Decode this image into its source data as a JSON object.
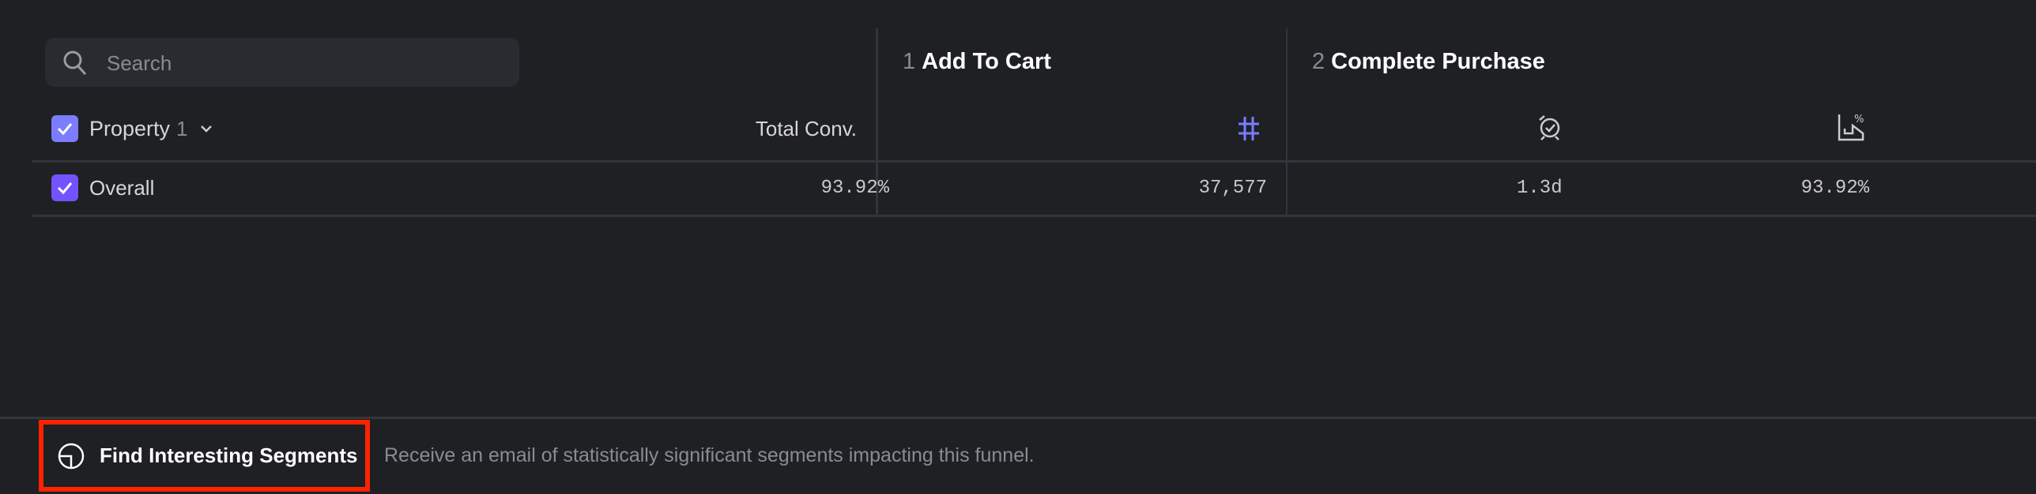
{
  "search": {
    "placeholder": "Search",
    "icon": "search-icon"
  },
  "table": {
    "property_header": {
      "label": "Property",
      "count": "1",
      "checked": true
    },
    "total_conv_header": "Total Conv.",
    "steps": [
      {
        "number": "1",
        "name": "Add To Cart",
        "metric_icons": [
          "hash-icon"
        ]
      },
      {
        "number": "2",
        "name": "Complete Purchase",
        "metric_icons": [
          "clock-check-icon",
          "conversion-chart-icon"
        ]
      }
    ],
    "rows": [
      {
        "label": "Overall",
        "checked": true,
        "total_conv": "93.92%",
        "step1_count": "37,577",
        "step2_time": "1.3d",
        "step2_conv": "93.92%"
      }
    ]
  },
  "footer": {
    "button_label": "Find Interesting Segments",
    "description": "Receive an email of statistically significant segments impacting this funnel."
  },
  "colors": {
    "background": "#1f2024",
    "accent": "#7b7cff",
    "checkbox_row": "#7352ff",
    "highlight": "#ff2200"
  }
}
